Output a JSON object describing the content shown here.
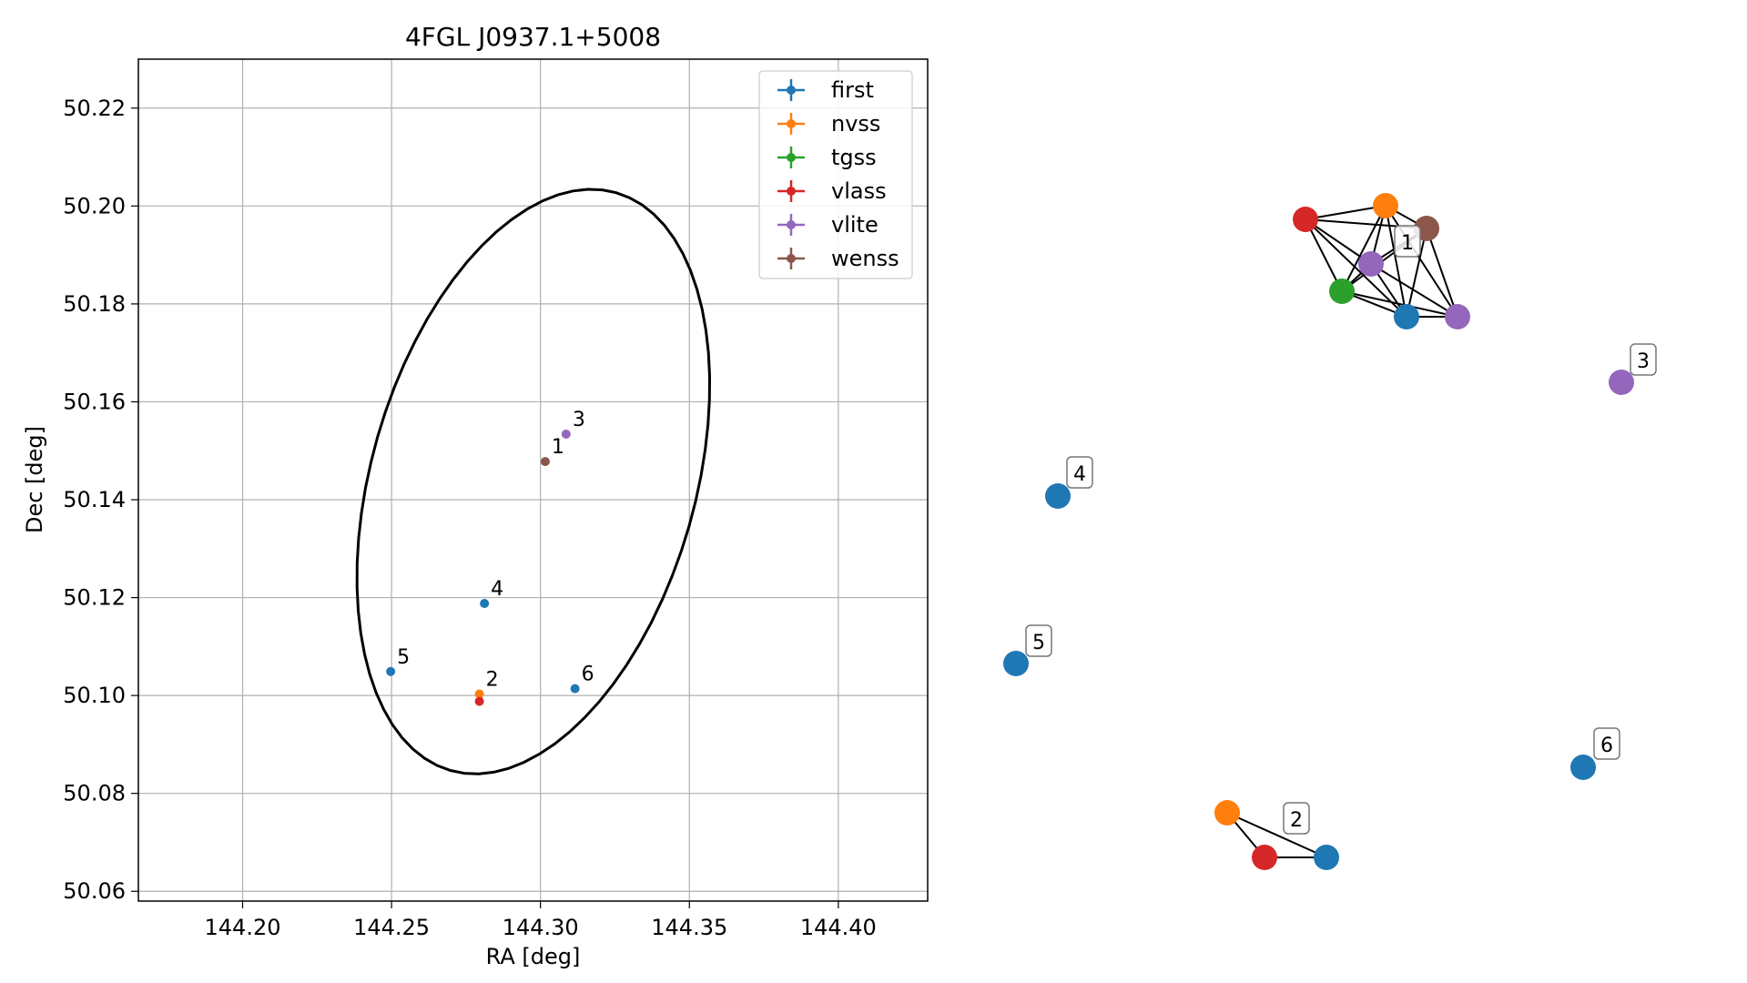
{
  "chart_data": [
    {
      "type": "scatter",
      "title": "4FGL J0937.1+5008",
      "xlabel": "RA [deg]",
      "ylabel": "Dec [deg]",
      "xlim": [
        144.165,
        144.43
      ],
      "ylim": [
        50.058,
        50.23
      ],
      "grid": true,
      "legend_position": "top-right",
      "xticks": [
        144.2,
        144.25,
        144.3,
        144.35,
        144.4
      ],
      "xtick_labels": [
        "144.20",
        "144.25",
        "144.30",
        "144.35",
        "144.40"
      ],
      "yticks": [
        50.06,
        50.08,
        50.1,
        50.12,
        50.14,
        50.16,
        50.18,
        50.2,
        50.22
      ],
      "ytick_labels": [
        "50.06",
        "50.08",
        "50.10",
        "50.12",
        "50.14",
        "50.16",
        "50.18",
        "50.20",
        "50.22"
      ],
      "series": [
        {
          "name": "first",
          "color": "#1f77b4"
        },
        {
          "name": "nvss",
          "color": "#ff7f0e"
        },
        {
          "name": "tgss",
          "color": "#2ca02c"
        },
        {
          "name": "vlass",
          "color": "#d62728"
        },
        {
          "name": "vlite",
          "color": "#9467bd"
        },
        {
          "name": "wenss",
          "color": "#8c564b"
        }
      ],
      "points": [
        {
          "survey": "wenss",
          "ra": 144.3016,
          "dec": 50.1478
        },
        {
          "survey": "vlite",
          "ra": 144.3086,
          "dec": 50.1534
        },
        {
          "survey": "first",
          "ra": 144.2812,
          "dec": 50.1188
        },
        {
          "survey": "first",
          "ra": 144.2497,
          "dec": 50.1049
        },
        {
          "survey": "nvss",
          "ra": 144.2795,
          "dec": 50.1003
        },
        {
          "survey": "vlass",
          "ra": 144.2795,
          "dec": 50.0988
        },
        {
          "survey": "first",
          "ra": 144.3116,
          "dec": 50.1014
        }
      ],
      "annotations": [
        {
          "text": "1",
          "ra": 144.3016,
          "dec": 50.1478
        },
        {
          "text": "3",
          "ra": 144.3086,
          "dec": 50.1534
        },
        {
          "text": "4",
          "ra": 144.2812,
          "dec": 50.1188
        },
        {
          "text": "5",
          "ra": 144.2497,
          "dec": 50.1049
        },
        {
          "text": "2",
          "ra": 144.2795,
          "dec": 50.1003
        },
        {
          "text": "6",
          "ra": 144.3116,
          "dec": 50.1014
        }
      ],
      "ellipse": {
        "center_ra": 144.2976,
        "center_dec": 50.1437,
        "semi_major_deg": 0.0544,
        "semi_minor_deg": 0.0614,
        "angle_deg": 16
      }
    },
    {
      "type": "network",
      "nodes": [
        {
          "id": "n1a",
          "color": "#d62728"
        },
        {
          "id": "n1b",
          "color": "#ff7f0e"
        },
        {
          "id": "n1c",
          "color": "#8c564b"
        },
        {
          "id": "n1d",
          "color": "#9467bd"
        },
        {
          "id": "n1e",
          "color": "#2ca02c"
        },
        {
          "id": "n1f",
          "color": "#1f77b4"
        },
        {
          "id": "n1g",
          "color": "#9467bd"
        },
        {
          "id": "n3",
          "color": "#9467bd"
        },
        {
          "id": "n4",
          "color": "#1f77b4"
        },
        {
          "id": "n5",
          "color": "#1f77b4"
        },
        {
          "id": "n6",
          "color": "#1f77b4"
        },
        {
          "id": "n2a",
          "color": "#ff7f0e"
        },
        {
          "id": "n2b",
          "color": "#d62728"
        },
        {
          "id": "n2c",
          "color": "#1f77b4"
        }
      ],
      "edges": [
        [
          "n1a",
          "n1b"
        ],
        [
          "n1a",
          "n1c"
        ],
        [
          "n1a",
          "n1d"
        ],
        [
          "n1a",
          "n1e"
        ],
        [
          "n1a",
          "n1f"
        ],
        [
          "n1b",
          "n1c"
        ],
        [
          "n1b",
          "n1d"
        ],
        [
          "n1b",
          "n1e"
        ],
        [
          "n1b",
          "n1f"
        ],
        [
          "n1b",
          "n1g"
        ],
        [
          "n1c",
          "n1d"
        ],
        [
          "n1c",
          "n1e"
        ],
        [
          "n1c",
          "n1f"
        ],
        [
          "n1c",
          "n1g"
        ],
        [
          "n1d",
          "n1e"
        ],
        [
          "n1d",
          "n1f"
        ],
        [
          "n1d",
          "n1g"
        ],
        [
          "n1e",
          "n1f"
        ],
        [
          "n1e",
          "n1g"
        ],
        [
          "n1f",
          "n1g"
        ],
        [
          "n2a",
          "n2b"
        ],
        [
          "n2a",
          "n2c"
        ],
        [
          "n2b",
          "n2c"
        ]
      ],
      "labels": [
        {
          "text": "1",
          "node": "n1d"
        },
        {
          "text": "3",
          "node": "n3"
        },
        {
          "text": "4",
          "node": "n4"
        },
        {
          "text": "5",
          "node": "n5"
        },
        {
          "text": "6",
          "node": "n6"
        },
        {
          "text": "2",
          "node": "n2c"
        }
      ]
    }
  ]
}
